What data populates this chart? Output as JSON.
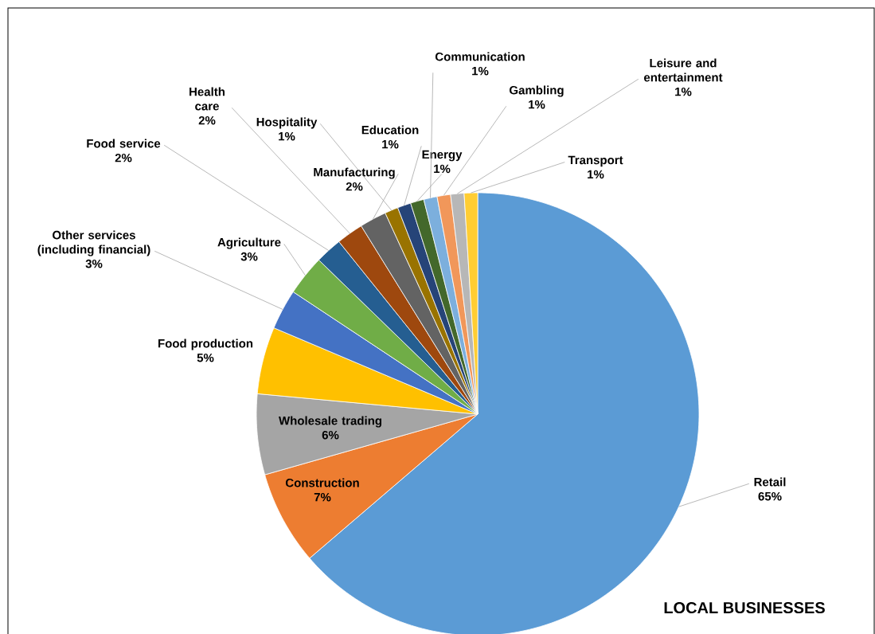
{
  "chart_data": {
    "type": "pie",
    "title": "LOCAL BUSINESSES",
    "categories": [
      "Retail",
      "Construction",
      "Wholesale trading",
      "Food production",
      "Other services (including financial)",
      "Agriculture",
      "Food service",
      "Health care",
      "Manufacturing",
      "Hospitality",
      "Education",
      "Energy",
      "Communication",
      "Gambling",
      "Leisure and entertainment",
      "Transport"
    ],
    "values": [
      65,
      7,
      6,
      5,
      3,
      3,
      2,
      2,
      2,
      1,
      1,
      1,
      1,
      1,
      1,
      1
    ],
    "value_labels": [
      "65%",
      "7%",
      "6%",
      "5%",
      "3%",
      "3%",
      "2%",
      "2%",
      "2%",
      "1%",
      "1%",
      "1%",
      "1%",
      "1%",
      "1%",
      "1%"
    ],
    "colors": [
      "#5b9bd5",
      "#ed7d31",
      "#a5a5a5",
      "#ffc000",
      "#4472c4",
      "#70ad47",
      "#255e91",
      "#9e480e",
      "#636363",
      "#997300",
      "#264478",
      "#43682b",
      "#7cafdd",
      "#f1975a",
      "#b7b7b7",
      "#ffcd33"
    ]
  }
}
